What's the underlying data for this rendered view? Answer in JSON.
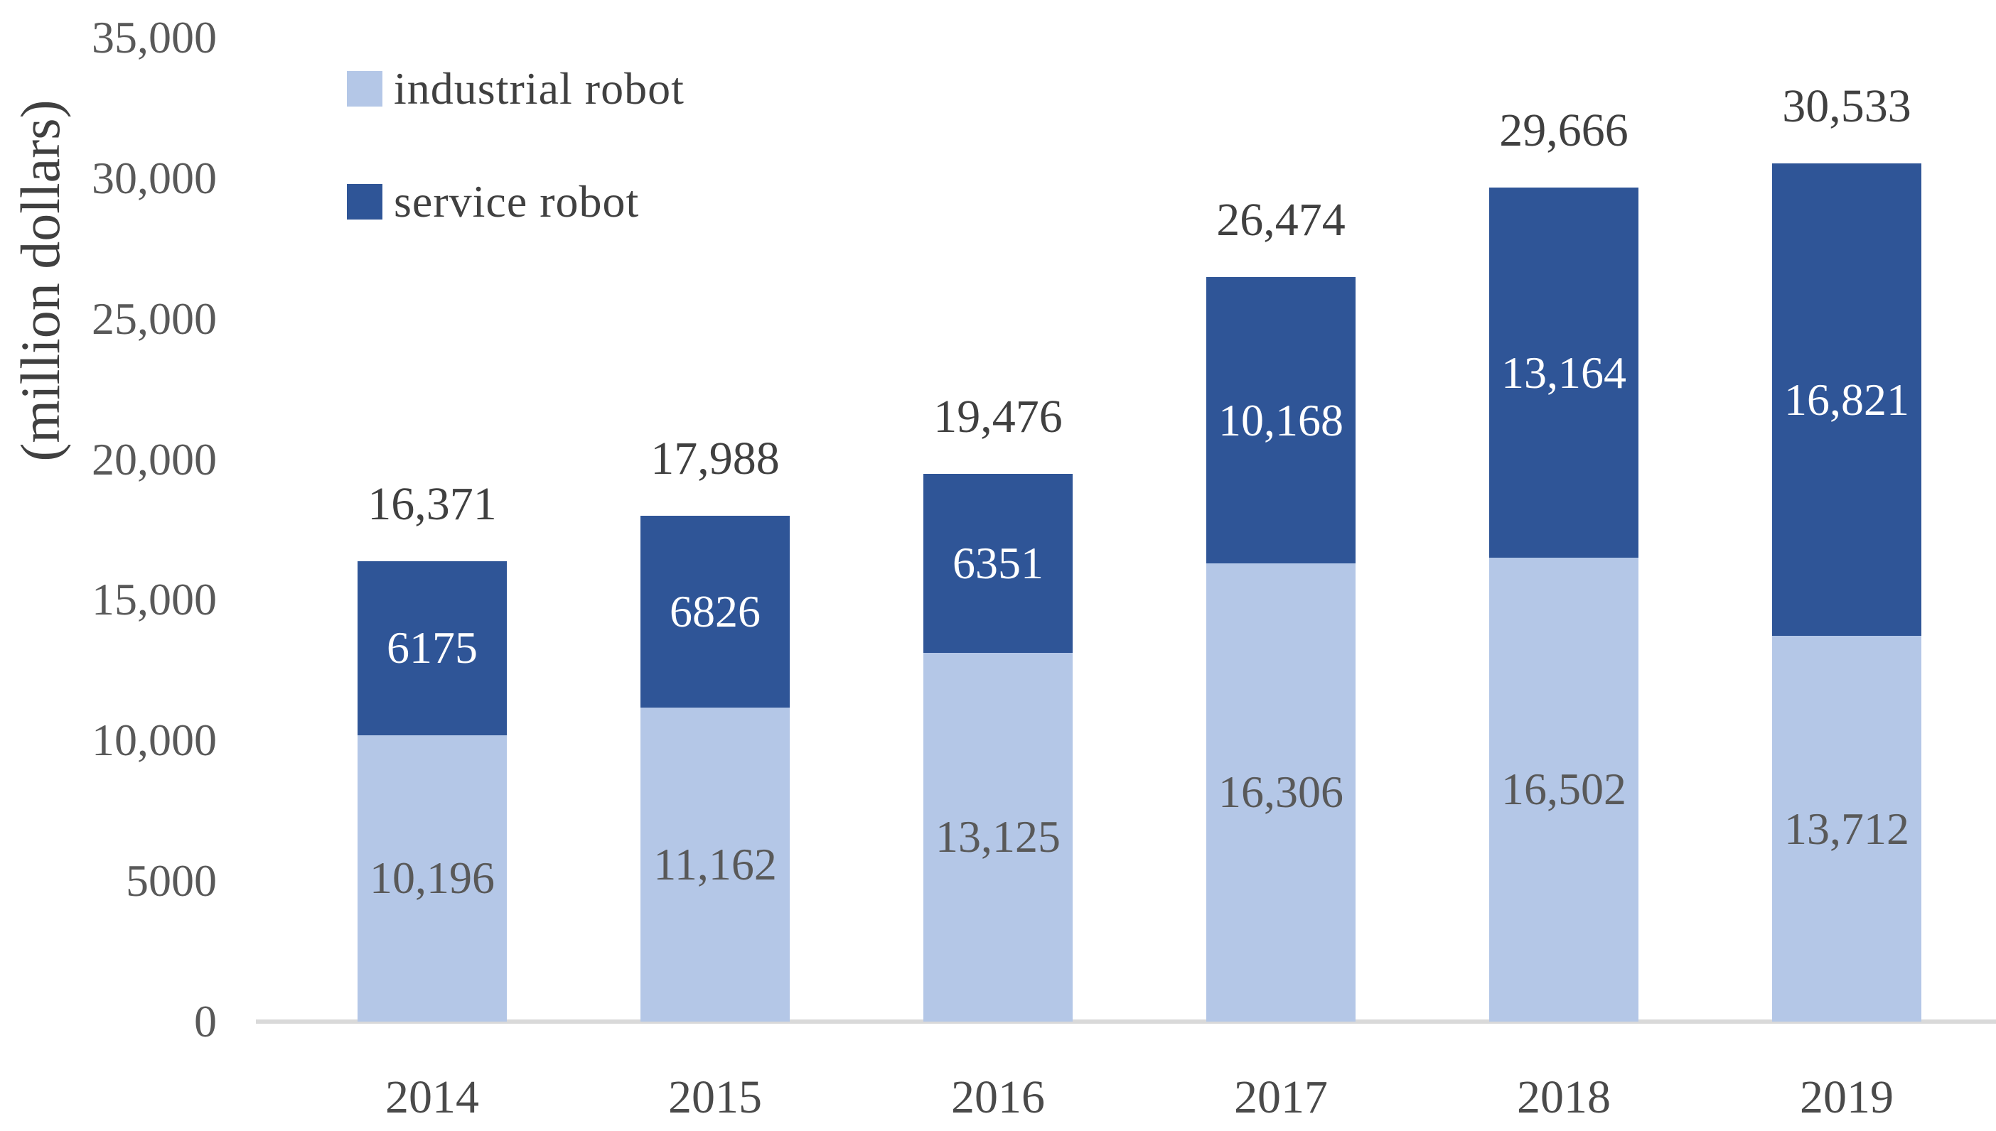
{
  "chart_data": {
    "type": "bar",
    "stacked": true,
    "title": "",
    "ylabel": "(million dollars)",
    "xlabel": "",
    "grid": false,
    "legend_position": "top-left",
    "ylim": [
      0,
      35000
    ],
    "categories": [
      "2014",
      "2015",
      "2016",
      "2017",
      "2018",
      "2019"
    ],
    "series": [
      {
        "name": "industrial robot",
        "color": "#B4C7E7",
        "values": [
          10196,
          11162,
          13125,
          16306,
          16502,
          13712
        ],
        "value_labels": [
          "10,196",
          "11,162",
          "13,125",
          "16,306",
          "16,502",
          "13,712"
        ],
        "label_color": "#595959"
      },
      {
        "name": "service robot",
        "color": "#2F5597",
        "values": [
          6175,
          6826,
          6351,
          10168,
          13164,
          16821
        ],
        "value_labels": [
          "6175",
          "6826",
          "6351",
          "10,168",
          "13,164",
          "16,821"
        ],
        "label_color": "#FFFFFF"
      }
    ],
    "totals": [
      16371,
      17988,
      19476,
      26474,
      29666,
      30533
    ],
    "total_labels": [
      "16,371",
      "17,988",
      "19,476",
      "26,474",
      "29,666",
      "30,533"
    ],
    "y_ticks": [
      {
        "value": 0,
        "label": "0"
      },
      {
        "value": 5000,
        "label": "5000"
      },
      {
        "value": 10000,
        "label": "10,000"
      },
      {
        "value": 15000,
        "label": "15,000"
      },
      {
        "value": 20000,
        "label": "20,000"
      },
      {
        "value": 25000,
        "label": "25,000"
      },
      {
        "value": 30000,
        "label": "30,000"
      },
      {
        "value": 35000,
        "label": "35,000"
      }
    ],
    "colors": {
      "axis_line": "#D9D9D9",
      "tick_text": "#595959",
      "total_text": "#404040",
      "category_text": "#4a4a4a"
    }
  }
}
